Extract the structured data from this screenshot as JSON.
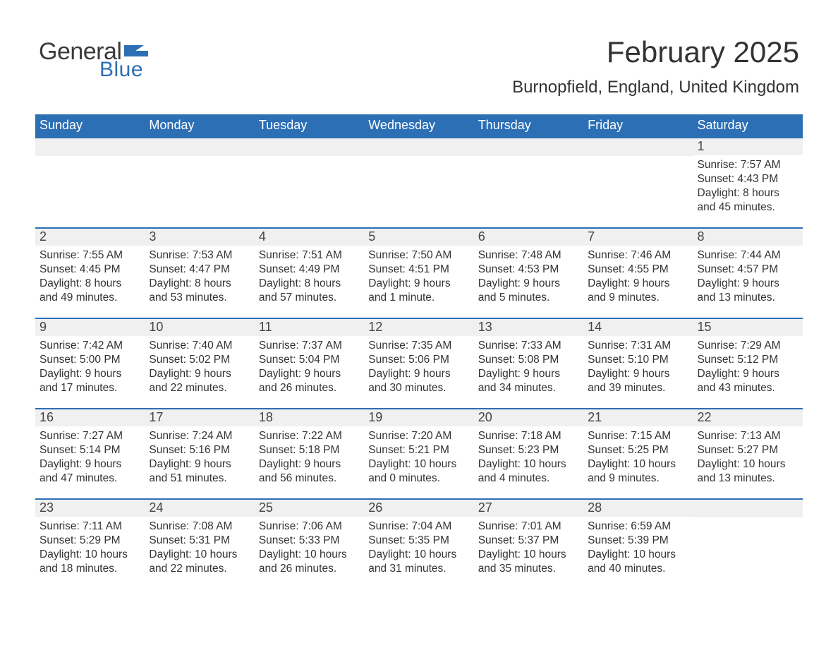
{
  "brand": {
    "word1": "General",
    "word2": "Blue",
    "word1_color": "#3a3a3a",
    "word2_color": "#2c6fb5",
    "flag_color": "#2c6fb5"
  },
  "header": {
    "title": "February 2025",
    "location": "Burnopfield, England, United Kingdom",
    "title_fontsize": 42,
    "location_fontsize": 24,
    "text_color": "#333333"
  },
  "calendar": {
    "header_bg": "#2c6fb5",
    "header_text_color": "#ffffff",
    "daynum_bg": "#f0f0f0",
    "daynum_border_color": "#2c6fb5",
    "body_text_color": "#333333",
    "background_color": "#ffffff",
    "weekday_fontsize": 18,
    "daynum_fontsize": 18,
    "body_fontsize": 15.5,
    "weekdays": [
      "Sunday",
      "Monday",
      "Tuesday",
      "Wednesday",
      "Thursday",
      "Friday",
      "Saturday"
    ],
    "weeks": [
      [
        null,
        null,
        null,
        null,
        null,
        null,
        {
          "n": "1",
          "sr": "Sunrise: 7:57 AM",
          "ss": "Sunset: 4:43 PM",
          "d1": "Daylight: 8 hours",
          "d2": "and 45 minutes."
        }
      ],
      [
        {
          "n": "2",
          "sr": "Sunrise: 7:55 AM",
          "ss": "Sunset: 4:45 PM",
          "d1": "Daylight: 8 hours",
          "d2": "and 49 minutes."
        },
        {
          "n": "3",
          "sr": "Sunrise: 7:53 AM",
          "ss": "Sunset: 4:47 PM",
          "d1": "Daylight: 8 hours",
          "d2": "and 53 minutes."
        },
        {
          "n": "4",
          "sr": "Sunrise: 7:51 AM",
          "ss": "Sunset: 4:49 PM",
          "d1": "Daylight: 8 hours",
          "d2": "and 57 minutes."
        },
        {
          "n": "5",
          "sr": "Sunrise: 7:50 AM",
          "ss": "Sunset: 4:51 PM",
          "d1": "Daylight: 9 hours",
          "d2": "and 1 minute."
        },
        {
          "n": "6",
          "sr": "Sunrise: 7:48 AM",
          "ss": "Sunset: 4:53 PM",
          "d1": "Daylight: 9 hours",
          "d2": "and 5 minutes."
        },
        {
          "n": "7",
          "sr": "Sunrise: 7:46 AM",
          "ss": "Sunset: 4:55 PM",
          "d1": "Daylight: 9 hours",
          "d2": "and 9 minutes."
        },
        {
          "n": "8",
          "sr": "Sunrise: 7:44 AM",
          "ss": "Sunset: 4:57 PM",
          "d1": "Daylight: 9 hours",
          "d2": "and 13 minutes."
        }
      ],
      [
        {
          "n": "9",
          "sr": "Sunrise: 7:42 AM",
          "ss": "Sunset: 5:00 PM",
          "d1": "Daylight: 9 hours",
          "d2": "and 17 minutes."
        },
        {
          "n": "10",
          "sr": "Sunrise: 7:40 AM",
          "ss": "Sunset: 5:02 PM",
          "d1": "Daylight: 9 hours",
          "d2": "and 22 minutes."
        },
        {
          "n": "11",
          "sr": "Sunrise: 7:37 AM",
          "ss": "Sunset: 5:04 PM",
          "d1": "Daylight: 9 hours",
          "d2": "and 26 minutes."
        },
        {
          "n": "12",
          "sr": "Sunrise: 7:35 AM",
          "ss": "Sunset: 5:06 PM",
          "d1": "Daylight: 9 hours",
          "d2": "and 30 minutes."
        },
        {
          "n": "13",
          "sr": "Sunrise: 7:33 AM",
          "ss": "Sunset: 5:08 PM",
          "d1": "Daylight: 9 hours",
          "d2": "and 34 minutes."
        },
        {
          "n": "14",
          "sr": "Sunrise: 7:31 AM",
          "ss": "Sunset: 5:10 PM",
          "d1": "Daylight: 9 hours",
          "d2": "and 39 minutes."
        },
        {
          "n": "15",
          "sr": "Sunrise: 7:29 AM",
          "ss": "Sunset: 5:12 PM",
          "d1": "Daylight: 9 hours",
          "d2": "and 43 minutes."
        }
      ],
      [
        {
          "n": "16",
          "sr": "Sunrise: 7:27 AM",
          "ss": "Sunset: 5:14 PM",
          "d1": "Daylight: 9 hours",
          "d2": "and 47 minutes."
        },
        {
          "n": "17",
          "sr": "Sunrise: 7:24 AM",
          "ss": "Sunset: 5:16 PM",
          "d1": "Daylight: 9 hours",
          "d2": "and 51 minutes."
        },
        {
          "n": "18",
          "sr": "Sunrise: 7:22 AM",
          "ss": "Sunset: 5:18 PM",
          "d1": "Daylight: 9 hours",
          "d2": "and 56 minutes."
        },
        {
          "n": "19",
          "sr": "Sunrise: 7:20 AM",
          "ss": "Sunset: 5:21 PM",
          "d1": "Daylight: 10 hours",
          "d2": "and 0 minutes."
        },
        {
          "n": "20",
          "sr": "Sunrise: 7:18 AM",
          "ss": "Sunset: 5:23 PM",
          "d1": "Daylight: 10 hours",
          "d2": "and 4 minutes."
        },
        {
          "n": "21",
          "sr": "Sunrise: 7:15 AM",
          "ss": "Sunset: 5:25 PM",
          "d1": "Daylight: 10 hours",
          "d2": "and 9 minutes."
        },
        {
          "n": "22",
          "sr": "Sunrise: 7:13 AM",
          "ss": "Sunset: 5:27 PM",
          "d1": "Daylight: 10 hours",
          "d2": "and 13 minutes."
        }
      ],
      [
        {
          "n": "23",
          "sr": "Sunrise: 7:11 AM",
          "ss": "Sunset: 5:29 PM",
          "d1": "Daylight: 10 hours",
          "d2": "and 18 minutes."
        },
        {
          "n": "24",
          "sr": "Sunrise: 7:08 AM",
          "ss": "Sunset: 5:31 PM",
          "d1": "Daylight: 10 hours",
          "d2": "and 22 minutes."
        },
        {
          "n": "25",
          "sr": "Sunrise: 7:06 AM",
          "ss": "Sunset: 5:33 PM",
          "d1": "Daylight: 10 hours",
          "d2": "and 26 minutes."
        },
        {
          "n": "26",
          "sr": "Sunrise: 7:04 AM",
          "ss": "Sunset: 5:35 PM",
          "d1": "Daylight: 10 hours",
          "d2": "and 31 minutes."
        },
        {
          "n": "27",
          "sr": "Sunrise: 7:01 AM",
          "ss": "Sunset: 5:37 PM",
          "d1": "Daylight: 10 hours",
          "d2": "and 35 minutes."
        },
        {
          "n": "28",
          "sr": "Sunrise: 6:59 AM",
          "ss": "Sunset: 5:39 PM",
          "d1": "Daylight: 10 hours",
          "d2": "and 40 minutes."
        },
        null
      ]
    ]
  }
}
